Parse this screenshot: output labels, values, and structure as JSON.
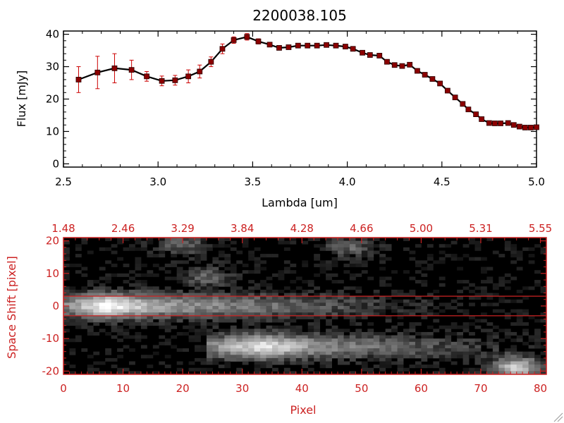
{
  "chart_data": [
    {
      "type": "line",
      "title": "2200038.105",
      "xlabel": "Lambda [um]",
      "ylabel": "Flux [mJy]",
      "xlim": [
        2.5,
        5.0
      ],
      "ylim": [
        -1,
        41
      ],
      "x_ticks": [
        "2.5",
        "3.0",
        "3.5",
        "4.0",
        "4.5",
        "5.0"
      ],
      "y_ticks": [
        "0",
        "10",
        "20",
        "30",
        "40"
      ],
      "series": [
        {
          "marker": "square",
          "line_color": "#000000",
          "marker_color": "#8b0000",
          "error_color": "#cc0000",
          "x": [
            2.58,
            2.68,
            2.77,
            2.86,
            2.94,
            3.02,
            3.09,
            3.16,
            3.22,
            3.28,
            3.34,
            3.4,
            3.47,
            3.53,
            3.59,
            3.64,
            3.69,
            3.74,
            3.79,
            3.84,
            3.89,
            3.94,
            3.99,
            4.03,
            4.08,
            4.12,
            4.17,
            4.21,
            4.25,
            4.29,
            4.33,
            4.37,
            4.41,
            4.45,
            4.49,
            4.53,
            4.57,
            4.61,
            4.64,
            4.68,
            4.71,
            4.75,
            4.78,
            4.81,
            4.85,
            4.88,
            4.91,
            4.94,
            4.97,
            5.0
          ],
          "y": [
            26.0,
            28.2,
            29.5,
            29.0,
            27.0,
            25.6,
            25.8,
            27.0,
            28.5,
            31.5,
            35.5,
            38.2,
            39.2,
            37.8,
            36.8,
            35.8,
            36.0,
            36.5,
            36.5,
            36.5,
            36.7,
            36.5,
            36.2,
            35.5,
            34.3,
            33.6,
            33.4,
            31.5,
            30.5,
            30.2,
            30.6,
            28.7,
            27.5,
            26.2,
            24.8,
            22.6,
            20.5,
            18.5,
            16.8,
            15.3,
            13.8,
            12.6,
            12.5,
            12.5,
            12.6,
            12.0,
            11.5,
            11.2,
            11.2,
            11.3
          ],
          "err": [
            4.0,
            5.0,
            4.5,
            3.0,
            1.5,
            1.5,
            1.5,
            2.0,
            2.0,
            1.5,
            1.5,
            1.0,
            1.0,
            0.8,
            0.6,
            0.6,
            0.6,
            0.6,
            0.6,
            0.6,
            0.6,
            0.6,
            0.6,
            0.6,
            0.6,
            0.6,
            0.6,
            0.6,
            0.6,
            0.6,
            0.6,
            0.6,
            0.6,
            0.6,
            0.6,
            0.6,
            0.6,
            0.6,
            0.6,
            0.6,
            0.6,
            0.6,
            0.6,
            0.6,
            0.6,
            0.6,
            0.6,
            0.6,
            0.6,
            0.6
          ]
        }
      ]
    },
    {
      "type": "heatmap",
      "xlabel": "Pixel",
      "ylabel": "Space Shift [pixel]",
      "xlim": [
        0,
        81
      ],
      "ylim": [
        -21,
        21
      ],
      "x_ticks": [
        "0",
        "10",
        "20",
        "30",
        "40",
        "50",
        "60",
        "70",
        "80"
      ],
      "y_ticks": [
        "-20",
        "-10",
        "0",
        "10",
        "20"
      ],
      "top_axis_ticks": [
        "1.48",
        "2.46",
        "3.29",
        "3.84",
        "4.28",
        "4.66",
        "5.00",
        "5.31",
        "5.55"
      ],
      "extraction_window": [
        -3,
        3
      ],
      "colormap": "grayscale",
      "accent_color": "#cc2222",
      "features": [
        {
          "kind": "trace",
          "center_y": 0,
          "x_start": 3,
          "x_end": 68,
          "peak_x": 7,
          "peak": 1.0
        },
        {
          "kind": "trace",
          "center_y": -12.5,
          "x_start": 27,
          "x_end": 81,
          "peak_x": 33,
          "peak": 0.9
        },
        {
          "kind": "blob",
          "x": 76,
          "y": -19,
          "peak": 0.75
        },
        {
          "kind": "blob",
          "x": 20,
          "y": 19,
          "peak": 0.3
        },
        {
          "kind": "blob",
          "x": 48,
          "y": 18,
          "peak": 0.3
        },
        {
          "kind": "blob",
          "x": 24,
          "y": 9,
          "peak": 0.3
        }
      ]
    }
  ]
}
